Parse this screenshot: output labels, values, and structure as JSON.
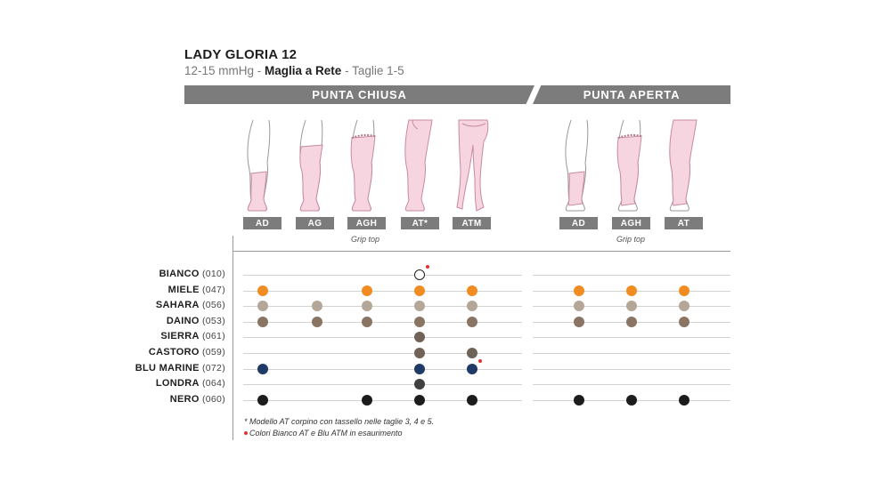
{
  "header": {
    "title": "LADY GLORIA 12",
    "pressure": "12-15 mmHg",
    "sep1": " - ",
    "fabric": "Maglia a Rete",
    "sep2": " - ",
    "sizes": "Taglie 1-5"
  },
  "sections": {
    "closed": "PUNTA CHIUSA",
    "open": "PUNTA APERTA"
  },
  "models": {
    "closed": [
      "AD",
      "AG",
      "AGH",
      "AT*",
      "ATM"
    ],
    "open": [
      "AD",
      "AGH",
      "AT"
    ]
  },
  "grip_note": "Grip top",
  "colors": {
    "orange": "#f08c22",
    "beige": "#b5a797",
    "brown": "#8a7565",
    "darkbrown": "#6f6256",
    "navy": "#1f3a66",
    "darkgrey": "#404040",
    "black": "#1c1c1c",
    "red_marker": "#e53030",
    "band": "#7c7c7c"
  },
  "rows": [
    {
      "name": "BIANCO",
      "code": "(010)"
    },
    {
      "name": "MIELE",
      "code": "(047)"
    },
    {
      "name": "SAHARA",
      "code": "(056)"
    },
    {
      "name": "DAINO",
      "code": "(053)"
    },
    {
      "name": "SIERRA",
      "code": "(061)"
    },
    {
      "name": "CASTORO",
      "code": "(059)"
    },
    {
      "name": "BLU MARINE",
      "code": "(072)"
    },
    {
      "name": "LONDRA",
      "code": "(064)"
    },
    {
      "name": "NERO",
      "code": "(060)"
    }
  ],
  "availability": {
    "closed": [
      [
        null,
        null,
        null,
        "empty*",
        null
      ],
      [
        "orange",
        null,
        "orange",
        "orange",
        "orange"
      ],
      [
        "beige",
        "beige",
        "beige",
        "beige",
        "beige"
      ],
      [
        "brown",
        "brown",
        "brown",
        "brown",
        "brown"
      ],
      [
        null,
        null,
        null,
        "darkbrown",
        null
      ],
      [
        null,
        null,
        null,
        "darkbrown",
        "darkbrown"
      ],
      [
        "navy",
        null,
        null,
        "navy",
        "navy*"
      ],
      [
        null,
        null,
        null,
        "darkgrey",
        null
      ],
      [
        "black",
        null,
        "black",
        "black",
        "black"
      ]
    ],
    "open": [
      [
        null,
        null,
        null
      ],
      [
        "orange",
        "orange",
        "orange"
      ],
      [
        "beige",
        "beige",
        "beige"
      ],
      [
        "brown",
        "brown",
        "brown"
      ],
      [
        null,
        null,
        null
      ],
      [
        null,
        null,
        null
      ],
      [
        null,
        null,
        null
      ],
      [
        null,
        null,
        null
      ],
      [
        "black",
        "black",
        "black"
      ]
    ]
  },
  "footnotes": {
    "star": "* Modello AT corpino con tassello nelle taglie 3, 4 e 5.",
    "red": "Colori Bianco AT e Blu ATM in esaurimento"
  }
}
